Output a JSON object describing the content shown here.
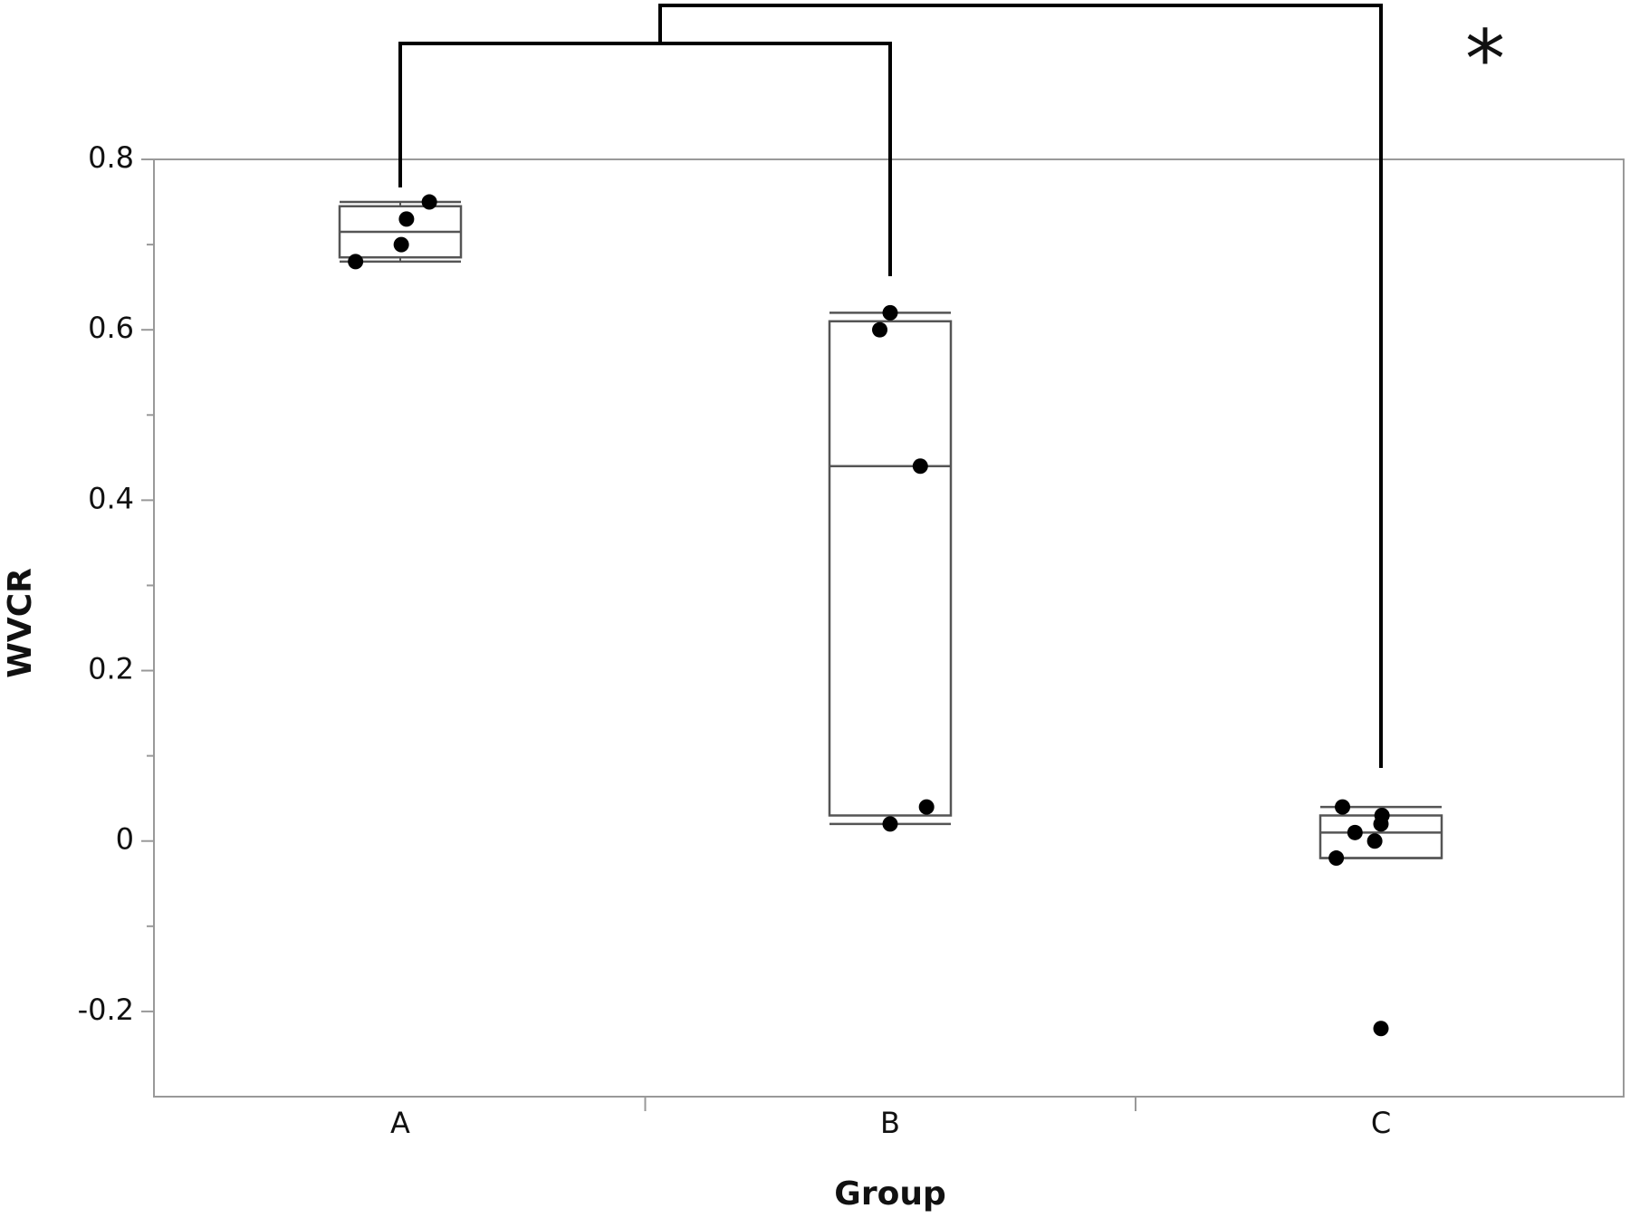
{
  "chart_data": {
    "type": "box",
    "x_label": "Group",
    "y_label": "WVCR",
    "categories": [
      "A",
      "B",
      "C"
    ],
    "ylim": [
      -0.3,
      0.8
    ],
    "yticks": [
      -0.2,
      0,
      0.2,
      0.4,
      0.6,
      0.8
    ],
    "box_color": "#555555",
    "point_color": "#000000",
    "significance": "*",
    "series": [
      {
        "name": "A",
        "whisker_low": 0.68,
        "q1": 0.685,
        "median": 0.715,
        "q3": 0.745,
        "whisker_high": 0.75,
        "points": [
          0.68,
          0.7,
          0.73,
          0.75
        ]
      },
      {
        "name": "B",
        "whisker_low": 0.02,
        "q1": 0.03,
        "median": 0.44,
        "q3": 0.61,
        "whisker_high": 0.62,
        "points": [
          0.62,
          0.6,
          0.44,
          0.04,
          0.02
        ]
      },
      {
        "name": "C",
        "whisker_low": -0.02,
        "q1": -0.02,
        "median": 0.01,
        "q3": 0.03,
        "whisker_high": 0.04,
        "points": [
          0.04,
          0.03,
          0.02,
          0.01,
          0.0,
          -0.02,
          -0.22
        ]
      }
    ]
  }
}
